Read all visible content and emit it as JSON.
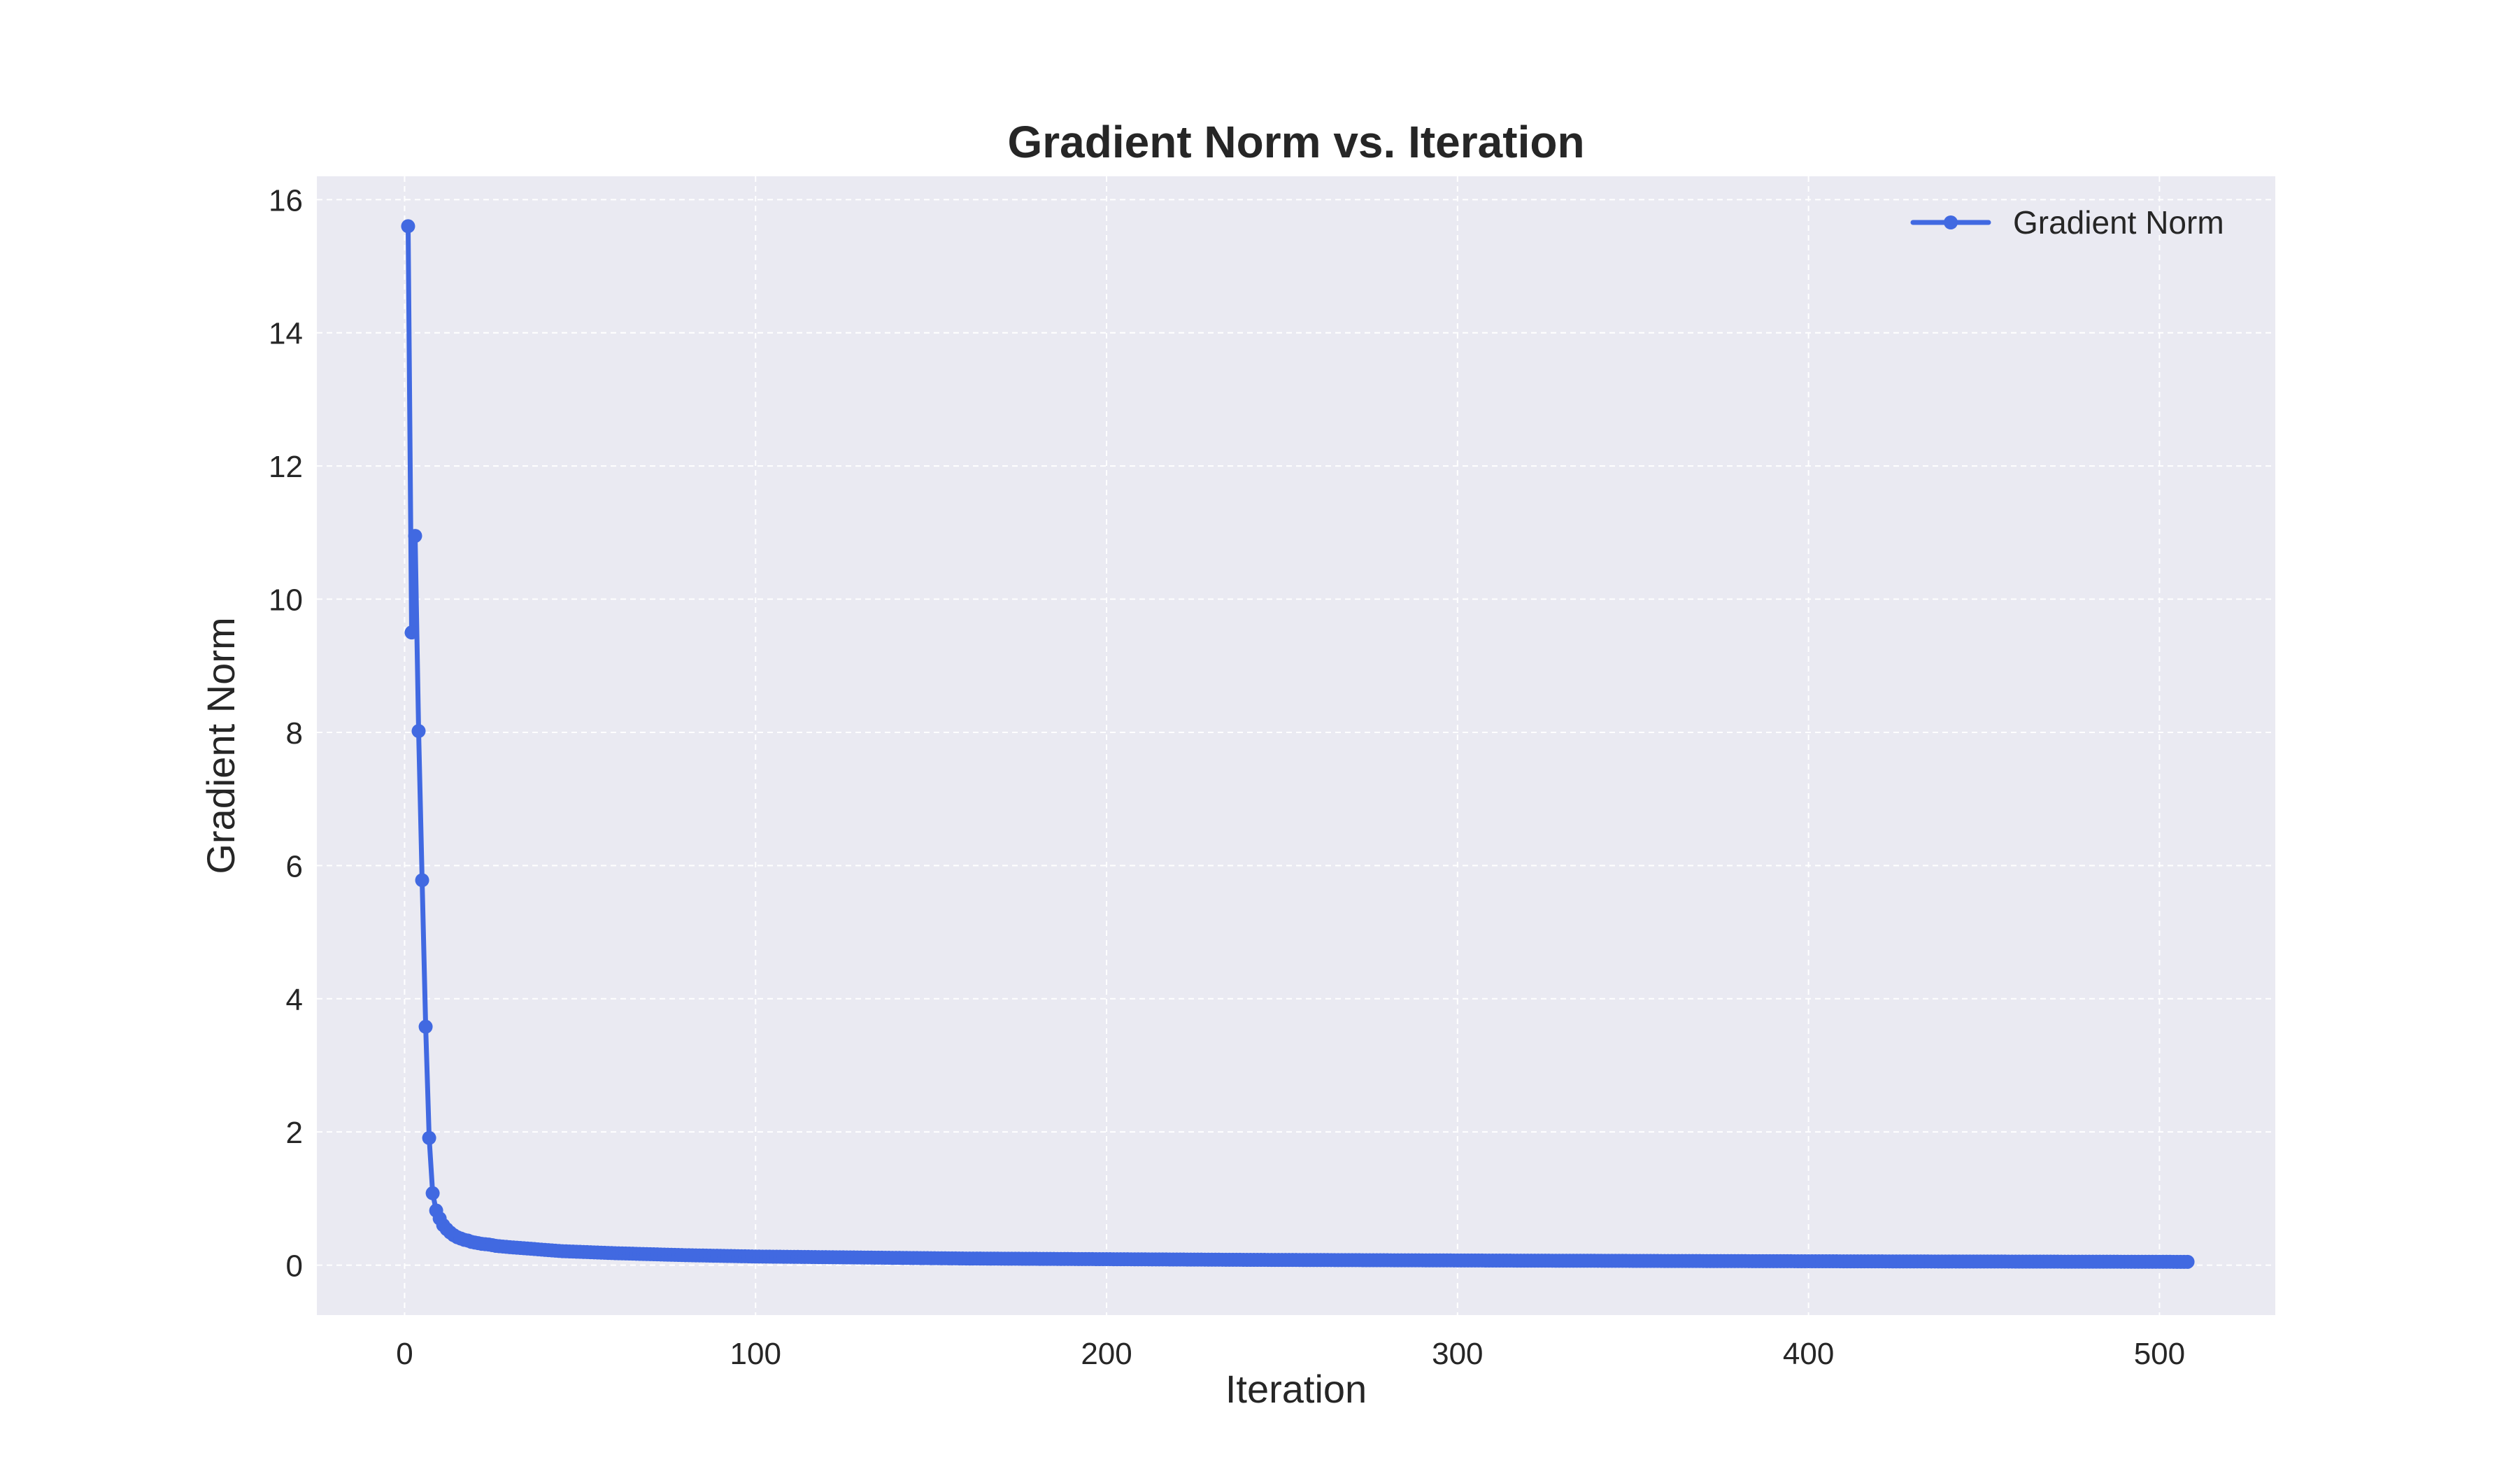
{
  "chart_data": {
    "type": "line",
    "title": "Gradient Norm vs. Iteration",
    "xlabel": "Iteration",
    "ylabel": "Gradient Norm",
    "xlim": [
      -25,
      533
    ],
    "ylim": [
      -0.75,
      16.35
    ],
    "xticks": [
      0,
      100,
      200,
      300,
      400,
      500
    ],
    "yticks": [
      0,
      2,
      4,
      6,
      8,
      10,
      12,
      14,
      16
    ],
    "grid": true,
    "legend_position": "top-right",
    "colors": {
      "line": "#4169e1",
      "axes_bg": "#eaeaf2",
      "grid": "#ffffff",
      "text": "#262626"
    },
    "series": [
      {
        "name": "Gradient Norm",
        "x": [
          1,
          2,
          3,
          4,
          5,
          6,
          7,
          8,
          9,
          10,
          11,
          12,
          13,
          14,
          15,
          16,
          17,
          18,
          19,
          20,
          22,
          24,
          26,
          28,
          30,
          35,
          40,
          45,
          50,
          60,
          70,
          80,
          90,
          100,
          120,
          140,
          160,
          180,
          200,
          220,
          240,
          260,
          280,
          300,
          320,
          340,
          360,
          380,
          400,
          420,
          440,
          460,
          480,
          500,
          505,
          508
        ],
        "y": [
          15.6,
          9.5,
          10.95,
          8.02,
          5.78,
          3.58,
          1.91,
          1.08,
          0.82,
          0.7,
          0.6,
          0.54,
          0.49,
          0.45,
          0.42,
          0.4,
          0.38,
          0.37,
          0.35,
          0.34,
          0.32,
          0.31,
          0.29,
          0.28,
          0.27,
          0.25,
          0.23,
          0.21,
          0.2,
          0.18,
          0.165,
          0.15,
          0.14,
          0.13,
          0.12,
          0.11,
          0.1,
          0.095,
          0.09,
          0.085,
          0.08,
          0.077,
          0.074,
          0.071,
          0.068,
          0.066,
          0.063,
          0.061,
          0.059,
          0.057,
          0.055,
          0.054,
          0.052,
          0.051,
          0.05,
          0.05
        ]
      }
    ]
  }
}
